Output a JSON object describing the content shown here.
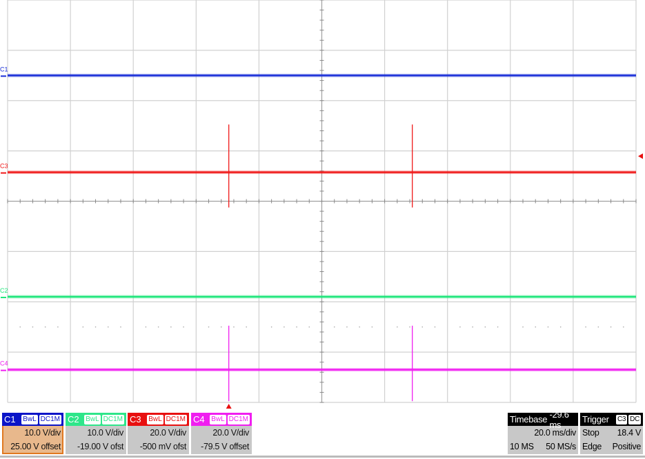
{
  "chart_data": {
    "type": "line",
    "grid": true,
    "divisions": {
      "x": 10,
      "y": 8
    },
    "x_unit": "ms",
    "xlim": [
      -70.4,
      129.6
    ],
    "trigger_time_ms": 0,
    "trigger_channel": "C3",
    "trigger_level_v": 18.4,
    "series": [
      {
        "name": "C1",
        "color": "#1a2fd8",
        "v_per_div": 10.0,
        "offset_v": 25.0,
        "baseline_v": 0,
        "spikes": []
      },
      {
        "name": "C3",
        "color": "#f01818",
        "v_per_div": 20.0,
        "offset_v": -0.5,
        "baseline_v": 12,
        "spikes": [
          {
            "t": 0,
            "max": 31,
            "min": -2
          },
          {
            "t": 58.4,
            "max": 31,
            "min": -2
          }
        ]
      },
      {
        "name": "C2",
        "color": "#1ee67a",
        "v_per_div": 10.0,
        "offset_v": -19.0,
        "baseline_v": 0,
        "spikes": []
      },
      {
        "name": "C4",
        "color": "#f01ef0",
        "v_per_div": 20.0,
        "offset_v": -79.5,
        "baseline_v": 12.5,
        "spikes": [
          {
            "t": 0,
            "max": 30,
            "min": 0
          },
          {
            "t": 58.4,
            "max": 30,
            "min": 0
          }
        ]
      }
    ]
  },
  "channels": [
    {
      "label": "C1",
      "bw": "BwL",
      "coupling": "DC1M",
      "vdiv": "10.0 V/div",
      "offset": "25.00 V offset",
      "color": "#0a14c8",
      "bg": "#e8b88c",
      "border": "#e07820"
    },
    {
      "label": "C2",
      "bw": "BwL",
      "coupling": "DC1M",
      "vdiv": "10.0 V/div",
      "offset": "-19.00 V ofst",
      "color": "#2ee68a",
      "bg": "#c8c8c8",
      "border": "#c8c8c8"
    },
    {
      "label": "C3",
      "bw": "BwL",
      "coupling": "DC1M",
      "vdiv": "20.0 V/div",
      "offset": "-500 mV ofst",
      "color": "#e81010",
      "bg": "#c8c8c8",
      "border": "#c8c8c8"
    },
    {
      "label": "C4",
      "bw": "BwL",
      "coupling": "DC1M",
      "vdiv": "20.0 V/div",
      "offset": "-79.5 V offset",
      "color": "#f01ef0",
      "bg": "#c8c8c8",
      "border": "#c8c8c8"
    }
  ],
  "timebase": {
    "title": "Timebase",
    "delay": "-29.6 ms",
    "tdiv": "20.0 ms/div",
    "points": "10 MS",
    "rate": "50 MS/s"
  },
  "trigger": {
    "title": "Trigger",
    "source": "C3",
    "coupling": "DC",
    "mode": "Stop",
    "level": "18.4 V",
    "type": "Edge",
    "slope": "Positive"
  }
}
